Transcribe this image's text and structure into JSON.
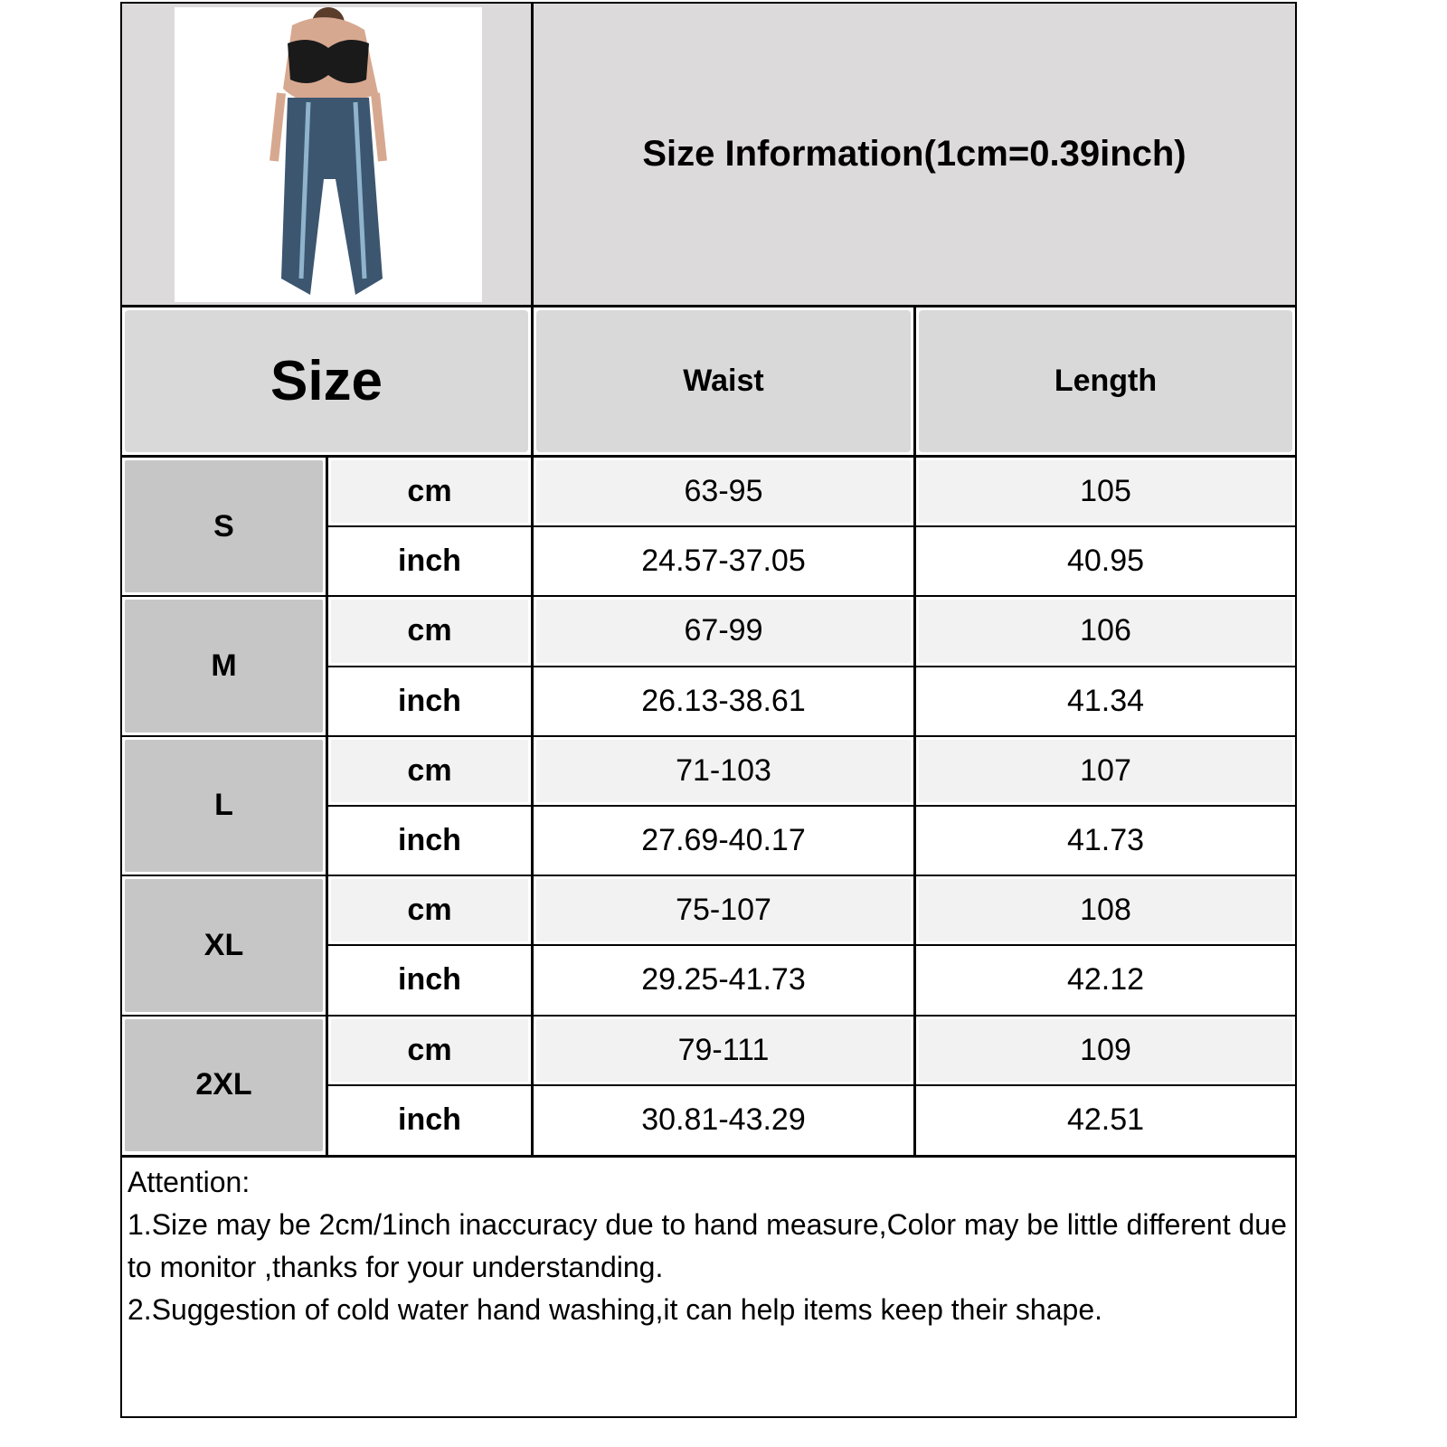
{
  "header": {
    "title": "Size Information(1cm=0.39inch)",
    "size_label": "Size",
    "columns": [
      "Waist",
      "Length"
    ]
  },
  "rows": [
    {
      "size": "S",
      "cm": {
        "unit": "cm",
        "waist": "63-95",
        "length": "105"
      },
      "inch": {
        "unit": "inch",
        "waist": "24.57-37.05",
        "length": "40.95"
      }
    },
    {
      "size": "M",
      "cm": {
        "unit": "cm",
        "waist": "67-99",
        "length": "106"
      },
      "inch": {
        "unit": "inch",
        "waist": "26.13-38.61",
        "length": "41.34"
      }
    },
    {
      "size": "L",
      "cm": {
        "unit": "cm",
        "waist": "71-103",
        "length": "107"
      },
      "inch": {
        "unit": "inch",
        "waist": "27.69-40.17",
        "length": "41.73"
      }
    },
    {
      "size": "XL",
      "cm": {
        "unit": "cm",
        "waist": "75-107",
        "length": "108"
      },
      "inch": {
        "unit": "inch",
        "waist": "29.25-41.73",
        "length": "42.12"
      }
    },
    {
      "size": "2XL",
      "cm": {
        "unit": "cm",
        "waist": "79-111",
        "length": "109"
      },
      "inch": {
        "unit": "inch",
        "waist": "30.81-43.29",
        "length": "42.51"
      }
    }
  ],
  "attention": {
    "heading": "Attention:",
    "notes": [
      "1.Size may be 2cm/1inch inaccuracy due to hand measure,Color may be little different due to monitor ,thanks for your understanding.",
      "2.Suggestion of cold water hand washing,it can help items keep their shape."
    ]
  },
  "colors": {
    "header_bg": "#d9d9d9",
    "size_bg": "#c6c6c6",
    "cm_row_bg": "#f2f2f2",
    "inch_row_bg": "#ffffff",
    "border": "#000000"
  }
}
